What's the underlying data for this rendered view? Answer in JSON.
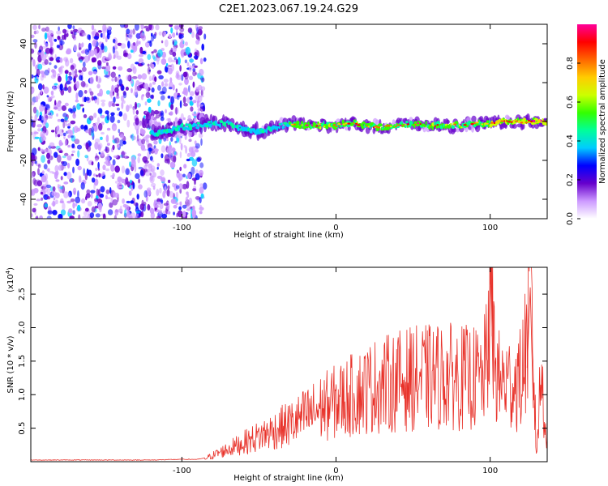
{
  "figure": {
    "title": "C2E1.2023.067.19.24.G29"
  },
  "chart_data": [
    {
      "type": "heatmap",
      "xlabel": "Height of straight line (km)",
      "ylabel": "Frequency (Hz)",
      "xlim": [
        -198,
        137
      ],
      "ylim": [
        -50,
        50
      ],
      "x_ticks": [
        -100,
        0,
        100
      ],
      "y_ticks": [
        -40,
        -20,
        0,
        20,
        40
      ],
      "x_tick_labels": [
        "-100",
        "0",
        "100"
      ],
      "y_tick_labels": [
        "-40",
        "-20",
        "0",
        "20",
        "40"
      ],
      "grid": false,
      "noise_region_x": [
        -198,
        -85
      ],
      "signal_trace": [
        {
          "x": -120,
          "y": -6
        },
        {
          "x": -110,
          "y": -5
        },
        {
          "x": -100,
          "y": -3
        },
        {
          "x": -90,
          "y": -2
        },
        {
          "x": -80,
          "y": -1
        },
        {
          "x": -70,
          "y": -1
        },
        {
          "x": -60,
          "y": -4
        },
        {
          "x": -50,
          "y": -5
        },
        {
          "x": -40,
          "y": -3
        },
        {
          "x": -30,
          "y": -1
        },
        {
          "x": -20,
          "y": -2
        },
        {
          "x": -10,
          "y": -2
        },
        {
          "x": 0,
          "y": -2
        },
        {
          "x": 10,
          "y": -1
        },
        {
          "x": 20,
          "y": -2
        },
        {
          "x": 30,
          "y": -3
        },
        {
          "x": 40,
          "y": -2
        },
        {
          "x": 50,
          "y": -1
        },
        {
          "x": 60,
          "y": -2
        },
        {
          "x": 70,
          "y": -2
        },
        {
          "x": 80,
          "y": -2
        },
        {
          "x": 90,
          "y": -1
        },
        {
          "x": 100,
          "y": -1
        },
        {
          "x": 110,
          "y": 0
        },
        {
          "x": 120,
          "y": 0
        },
        {
          "x": 130,
          "y": 0
        },
        {
          "x": 137,
          "y": 0
        }
      ],
      "colorbar": {
        "label": "Normalized spectral amplitude",
        "range": [
          0,
          1
        ],
        "ticks": [
          "0.0",
          "0.2",
          "0.4",
          "0.6",
          "0.8"
        ],
        "tick_values": [
          0,
          0.2,
          0.4,
          0.6,
          0.8
        ],
        "colors": [
          "#ffffff",
          "#cc99ff",
          "#6600cc",
          "#0000ff",
          "#00ccff",
          "#00ff99",
          "#33ff00",
          "#ccff00",
          "#ffcc00",
          "#ff6600",
          "#ff0000",
          "#ff0099"
        ]
      }
    },
    {
      "type": "line",
      "xlabel": "Height of straight line (km)",
      "ylabel": "SNR (10 * v/v)",
      "y_multiplier_label": "(x10",
      "y_multiplier_exp": "4",
      "xlim": [
        -198,
        137
      ],
      "ylim": [
        0,
        2.9
      ],
      "x_ticks": [
        -100,
        0,
        100
      ],
      "y_ticks": [
        0.5,
        1.0,
        1.5,
        2.0,
        2.5
      ],
      "x_tick_labels": [
        "-100",
        "0",
        "100"
      ],
      "y_tick_labels": [
        "0.5",
        "1.0",
        "1.5",
        "2.0",
        "2.5"
      ],
      "grid": false,
      "line_color": "#e8322a",
      "series": [
        {
          "x": [
            -198,
            -180,
            -160,
            -140,
            -120,
            -100,
            -90,
            -85,
            -80,
            -75,
            -70,
            -65,
            -60,
            -55,
            -50,
            -45,
            -40,
            -35,
            -30,
            -25,
            -20,
            -15,
            -10,
            -5,
            0,
            5,
            10,
            15,
            20,
            25,
            30,
            35,
            40,
            45,
            50,
            55,
            60,
            65,
            70,
            75,
            80,
            85,
            90,
            95,
            98,
            100,
            103,
            105,
            110,
            115,
            120,
            123,
            126,
            128,
            130,
            133,
            135,
            137
          ],
          "values": [
            0.02,
            0.02,
            0.02,
            0.02,
            0.02,
            0.03,
            0.03,
            0.05,
            0.1,
            0.15,
            0.2,
            0.25,
            0.3,
            0.35,
            0.4,
            0.45,
            0.5,
            0.55,
            0.6,
            0.65,
            0.72,
            0.78,
            0.85,
            0.9,
            0.95,
            1.0,
            1.05,
            1.1,
            1.15,
            1.2,
            1.22,
            1.25,
            1.28,
            1.3,
            1.32,
            1.33,
            1.34,
            1.35,
            1.35,
            1.35,
            1.34,
            1.33,
            1.32,
            1.3,
            1.6,
            2.9,
            1.6,
            1.3,
            1.25,
            1.25,
            1.3,
            1.8,
            2.6,
            1.6,
            0.1,
            1.4,
            0.9,
            0.3
          ]
        }
      ]
    }
  ]
}
